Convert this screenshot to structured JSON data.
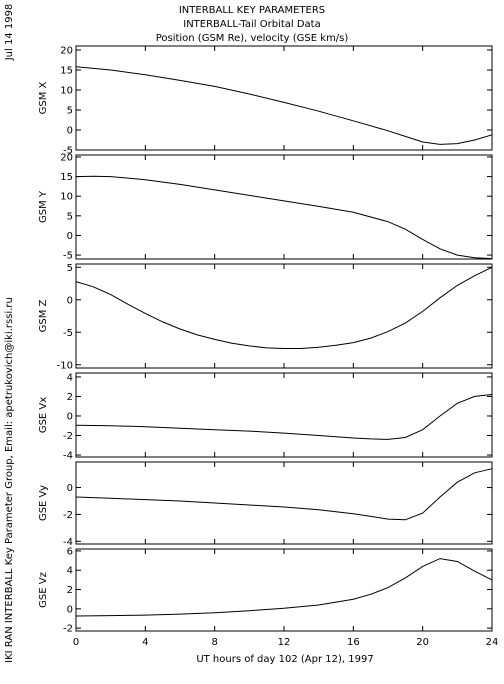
{
  "header": {
    "title_lines": [
      "INTERBALL KEY PARAMETERS",
      "INTERBALL-Tail Orbital Data",
      "Position (GSM Re), velocity (GSE km/s)"
    ],
    "date_label": "Jul 14 1998",
    "credit_label": "IKI RAN INTERBALL Key Parameter Group, Email: apetrukovich@iki.rssi.ru"
  },
  "chart_data": {
    "type": "line",
    "xlabel": "UT hours of day 102 (Apr 12), 1997",
    "xlim": [
      0,
      24
    ],
    "xticks": [
      0,
      4,
      8,
      12,
      16,
      20,
      24
    ],
    "grid": false,
    "panels": [
      {
        "ylabel": "GSM X",
        "ylim": [
          -5,
          21
        ],
        "yticks": [
          -5,
          0,
          5,
          10,
          15,
          20
        ],
        "x": [
          0,
          2,
          4,
          6,
          8,
          10,
          12,
          14,
          16,
          18,
          19,
          20,
          21,
          22,
          23,
          24
        ],
        "y": [
          15.8,
          15.0,
          13.8,
          12.4,
          10.9,
          9.0,
          6.9,
          4.7,
          2.3,
          -0.2,
          -1.6,
          -3.0,
          -3.6,
          -3.4,
          -2.5,
          -1.2
        ]
      },
      {
        "ylabel": "GSM Y",
        "ylim": [
          -6,
          20.5
        ],
        "yticks": [
          -5,
          0,
          5,
          10,
          15,
          20
        ],
        "x": [
          0,
          1,
          2,
          4,
          6,
          8,
          10,
          12,
          14,
          16,
          18,
          19,
          20,
          21,
          22,
          23,
          24
        ],
        "y": [
          15.0,
          15.1,
          15.0,
          14.2,
          13.0,
          11.6,
          10.2,
          8.8,
          7.4,
          5.9,
          3.5,
          1.6,
          -1.0,
          -3.4,
          -5.0,
          -5.7,
          -5.9
        ]
      },
      {
        "ylabel": "GSM Z",
        "ylim": [
          -10.5,
          5.5
        ],
        "yticks": [
          -10,
          -5,
          0,
          5
        ],
        "x": [
          0,
          1,
          2,
          3,
          4,
          5,
          6,
          7,
          8,
          9,
          10,
          11,
          12,
          13,
          14,
          15,
          16,
          17,
          18,
          19,
          20,
          21,
          22,
          23,
          24
        ],
        "y": [
          2.8,
          2.0,
          0.8,
          -0.7,
          -2.1,
          -3.4,
          -4.5,
          -5.4,
          -6.1,
          -6.7,
          -7.1,
          -7.4,
          -7.5,
          -7.5,
          -7.3,
          -7.0,
          -6.6,
          -5.9,
          -4.9,
          -3.6,
          -1.8,
          0.3,
          2.2,
          3.7,
          5.0
        ]
      },
      {
        "ylabel": "GSE Vx",
        "ylim": [
          -4.2,
          4.4
        ],
        "yticks": [
          -4,
          -2,
          0,
          2,
          4
        ],
        "x": [
          0,
          2,
          4,
          6,
          8,
          10,
          12,
          14,
          16,
          17,
          18,
          19,
          20,
          21,
          22,
          23,
          24
        ],
        "y": [
          -0.95,
          -1.0,
          -1.1,
          -1.25,
          -1.4,
          -1.55,
          -1.75,
          -2.0,
          -2.25,
          -2.35,
          -2.4,
          -2.2,
          -1.4,
          0.0,
          1.3,
          2.0,
          2.2
        ]
      },
      {
        "ylabel": "GSE Vy",
        "ylim": [
          -4.2,
          1.9
        ],
        "yticks": [
          -4,
          -2,
          0
        ],
        "x": [
          0,
          2,
          4,
          6,
          8,
          10,
          12,
          14,
          16,
          17,
          18,
          19,
          20,
          21,
          22,
          23,
          24
        ],
        "y": [
          -0.7,
          -0.8,
          -0.9,
          -1.0,
          -1.15,
          -1.3,
          -1.45,
          -1.65,
          -1.95,
          -2.15,
          -2.35,
          -2.4,
          -1.9,
          -0.7,
          0.4,
          1.1,
          1.4
        ]
      },
      {
        "ylabel": "GSE Vz",
        "ylim": [
          -2.3,
          6.2
        ],
        "yticks": [
          -2,
          0,
          2,
          4,
          6
        ],
        "x": [
          0,
          2,
          4,
          6,
          8,
          10,
          12,
          14,
          16,
          17,
          18,
          19,
          20,
          21,
          22,
          23,
          24
        ],
        "y": [
          -0.75,
          -0.7,
          -0.65,
          -0.55,
          -0.4,
          -0.2,
          0.05,
          0.4,
          1.0,
          1.5,
          2.2,
          3.2,
          4.4,
          5.2,
          4.9,
          3.9,
          3.0
        ]
      }
    ]
  }
}
